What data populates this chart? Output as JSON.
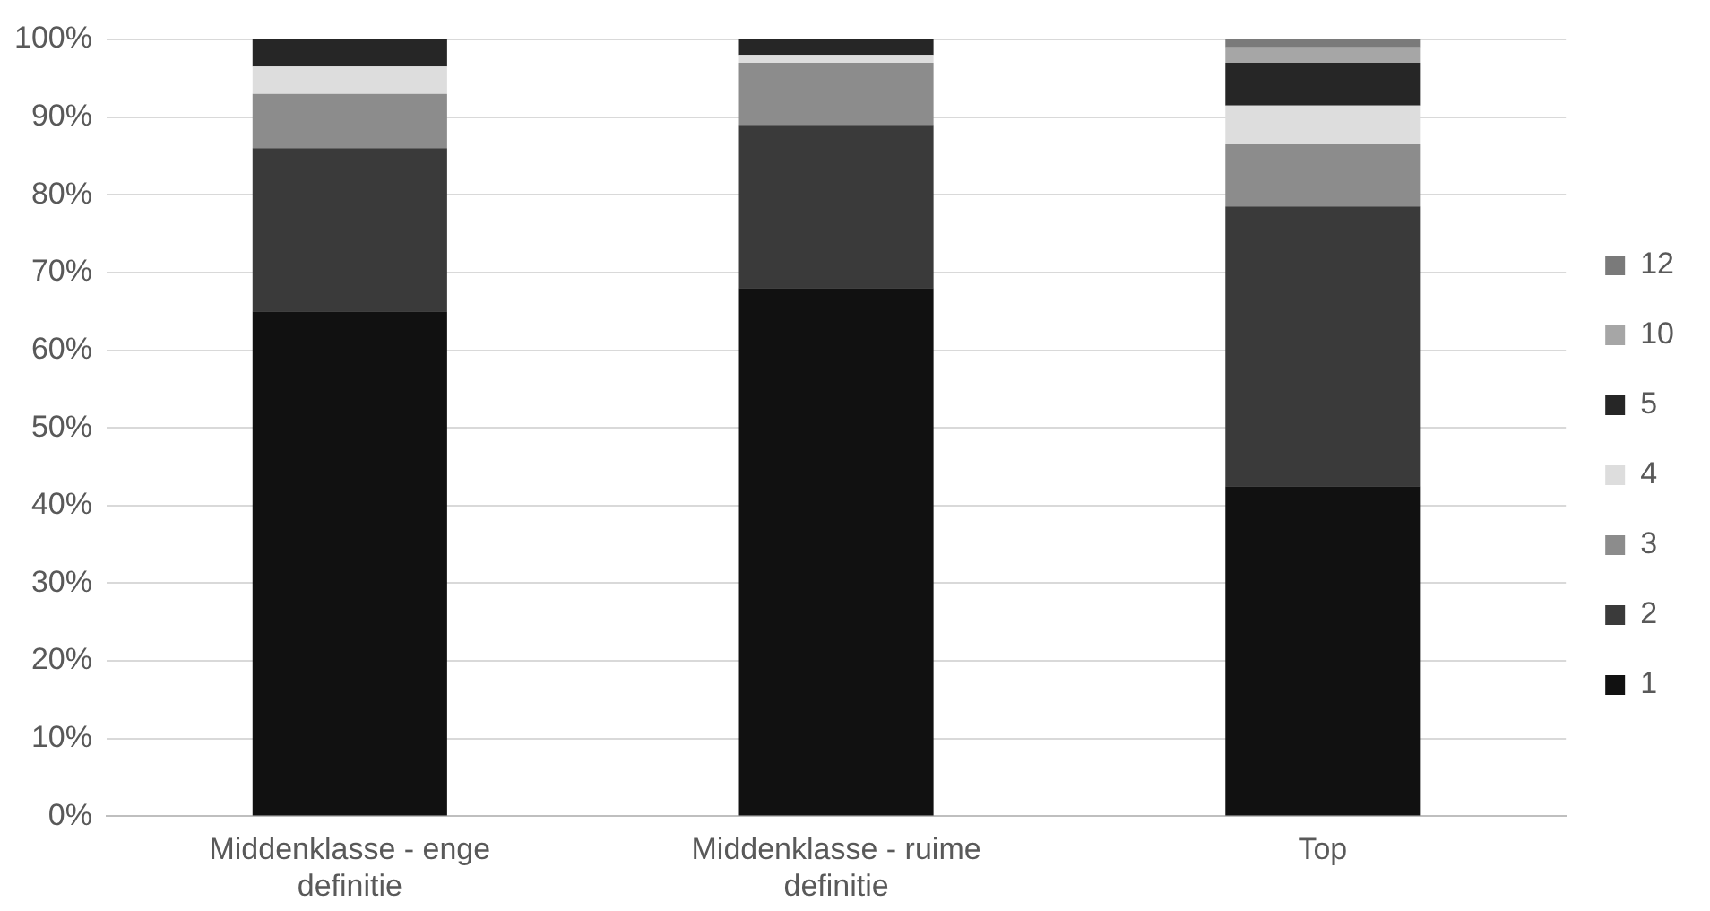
{
  "chart_data": {
    "type": "bar",
    "stacked": true,
    "categories": [
      "Middenklasse - enge definitie",
      "Middenklasse - ruime definitie",
      "Top"
    ],
    "series": [
      {
        "name": "1",
        "color": "#111111",
        "values": [
          65,
          68,
          42.5
        ]
      },
      {
        "name": "2",
        "color": "#3a3a3a",
        "values": [
          21,
          21,
          36
        ]
      },
      {
        "name": "3",
        "color": "#8c8c8c",
        "values": [
          7,
          8,
          8
        ]
      },
      {
        "name": "4",
        "color": "#dddddd",
        "values": [
          3.5,
          1,
          5
        ]
      },
      {
        "name": "5",
        "color": "#262626",
        "values": [
          3.5,
          2,
          5.5
        ]
      },
      {
        "name": "10",
        "color": "#a6a6a6",
        "values": [
          0,
          0,
          2
        ]
      },
      {
        "name": "12",
        "color": "#7a7a7a",
        "values": [
          0,
          0,
          1
        ]
      }
    ],
    "ylim": [
      0,
      100
    ],
    "yticks": [
      {
        "value": 0,
        "label": "0%"
      },
      {
        "value": 10,
        "label": "10%"
      },
      {
        "value": 20,
        "label": "20%"
      },
      {
        "value": 30,
        "label": "30%"
      },
      {
        "value": 40,
        "label": "40%"
      },
      {
        "value": 50,
        "label": "50%"
      },
      {
        "value": 60,
        "label": "60%"
      },
      {
        "value": 70,
        "label": "70%"
      },
      {
        "value": 80,
        "label": "80%"
      },
      {
        "value": 90,
        "label": "90%"
      },
      {
        "value": 100,
        "label": "100%"
      }
    ],
    "grid": "y",
    "legend": "right"
  }
}
